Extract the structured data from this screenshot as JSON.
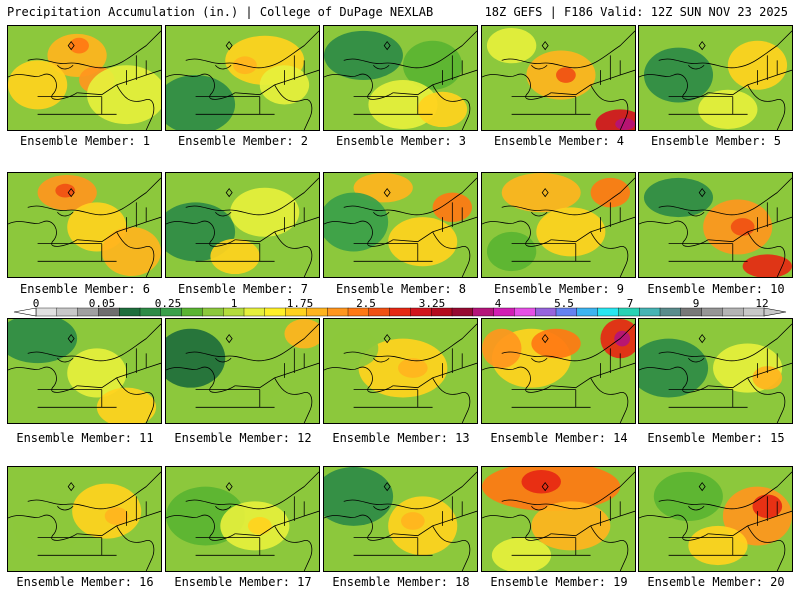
{
  "header": {
    "left": "Precipitation Accumulation (in.) | College of DuPage NEXLAB",
    "right": "18Z GEFS | F186 Valid: 12Z SUN NOV 23 2025"
  },
  "colorbar": {
    "tick_labels": [
      "0",
      "0.05",
      "0.25",
      "1",
      "1.75",
      "2.5",
      "3.25",
      "4",
      "5.5",
      "7",
      "9",
      "12"
    ],
    "colors": [
      "#e0e0e0",
      "#c8c8c8",
      "#a0a0a0",
      "#6e6e6e",
      "#1e6e3c",
      "#2e8b46",
      "#3aa04a",
      "#5ab432",
      "#8cc83c",
      "#b4dc3c",
      "#e6f03c",
      "#fff028",
      "#ffd21e",
      "#ffb41e",
      "#ff961e",
      "#ff7814",
      "#f05014",
      "#e62814",
      "#d2141e",
      "#b40a1e",
      "#960a32",
      "#b4147a",
      "#d21eb4",
      "#e650e6",
      "#9664dc",
      "#6482f0",
      "#3cb4f0",
      "#28e6f0",
      "#28d2b4",
      "#46b4b4",
      "#5a8c8c",
      "#787878",
      "#969696",
      "#b4b4b4",
      "#c8c8c8"
    ]
  },
  "panel_fill": {
    "base": "#8cc83c"
  },
  "members": [
    {
      "label": "Ensemble Member: 1"
    },
    {
      "label": "Ensemble Member: 2"
    },
    {
      "label": "Ensemble Member: 3"
    },
    {
      "label": "Ensemble Member: 4"
    },
    {
      "label": "Ensemble Member: 5"
    },
    {
      "label": "Ensemble Member: 6"
    },
    {
      "label": "Ensemble Member: 7"
    },
    {
      "label": "Ensemble Member: 8"
    },
    {
      "label": "Ensemble Member: 9"
    },
    {
      "label": "Ensemble Member: 10"
    },
    {
      "label": "Ensemble Member: 11"
    },
    {
      "label": "Ensemble Member: 12"
    },
    {
      "label": "Ensemble Member: 13"
    },
    {
      "label": "Ensemble Member: 14"
    },
    {
      "label": "Ensemble Member: 15"
    },
    {
      "label": "Ensemble Member: 16"
    },
    {
      "label": "Ensemble Member: 17"
    },
    {
      "label": "Ensemble Member: 18"
    },
    {
      "label": "Ensemble Member: 19"
    },
    {
      "label": "Ensemble Member: 20"
    }
  ]
}
